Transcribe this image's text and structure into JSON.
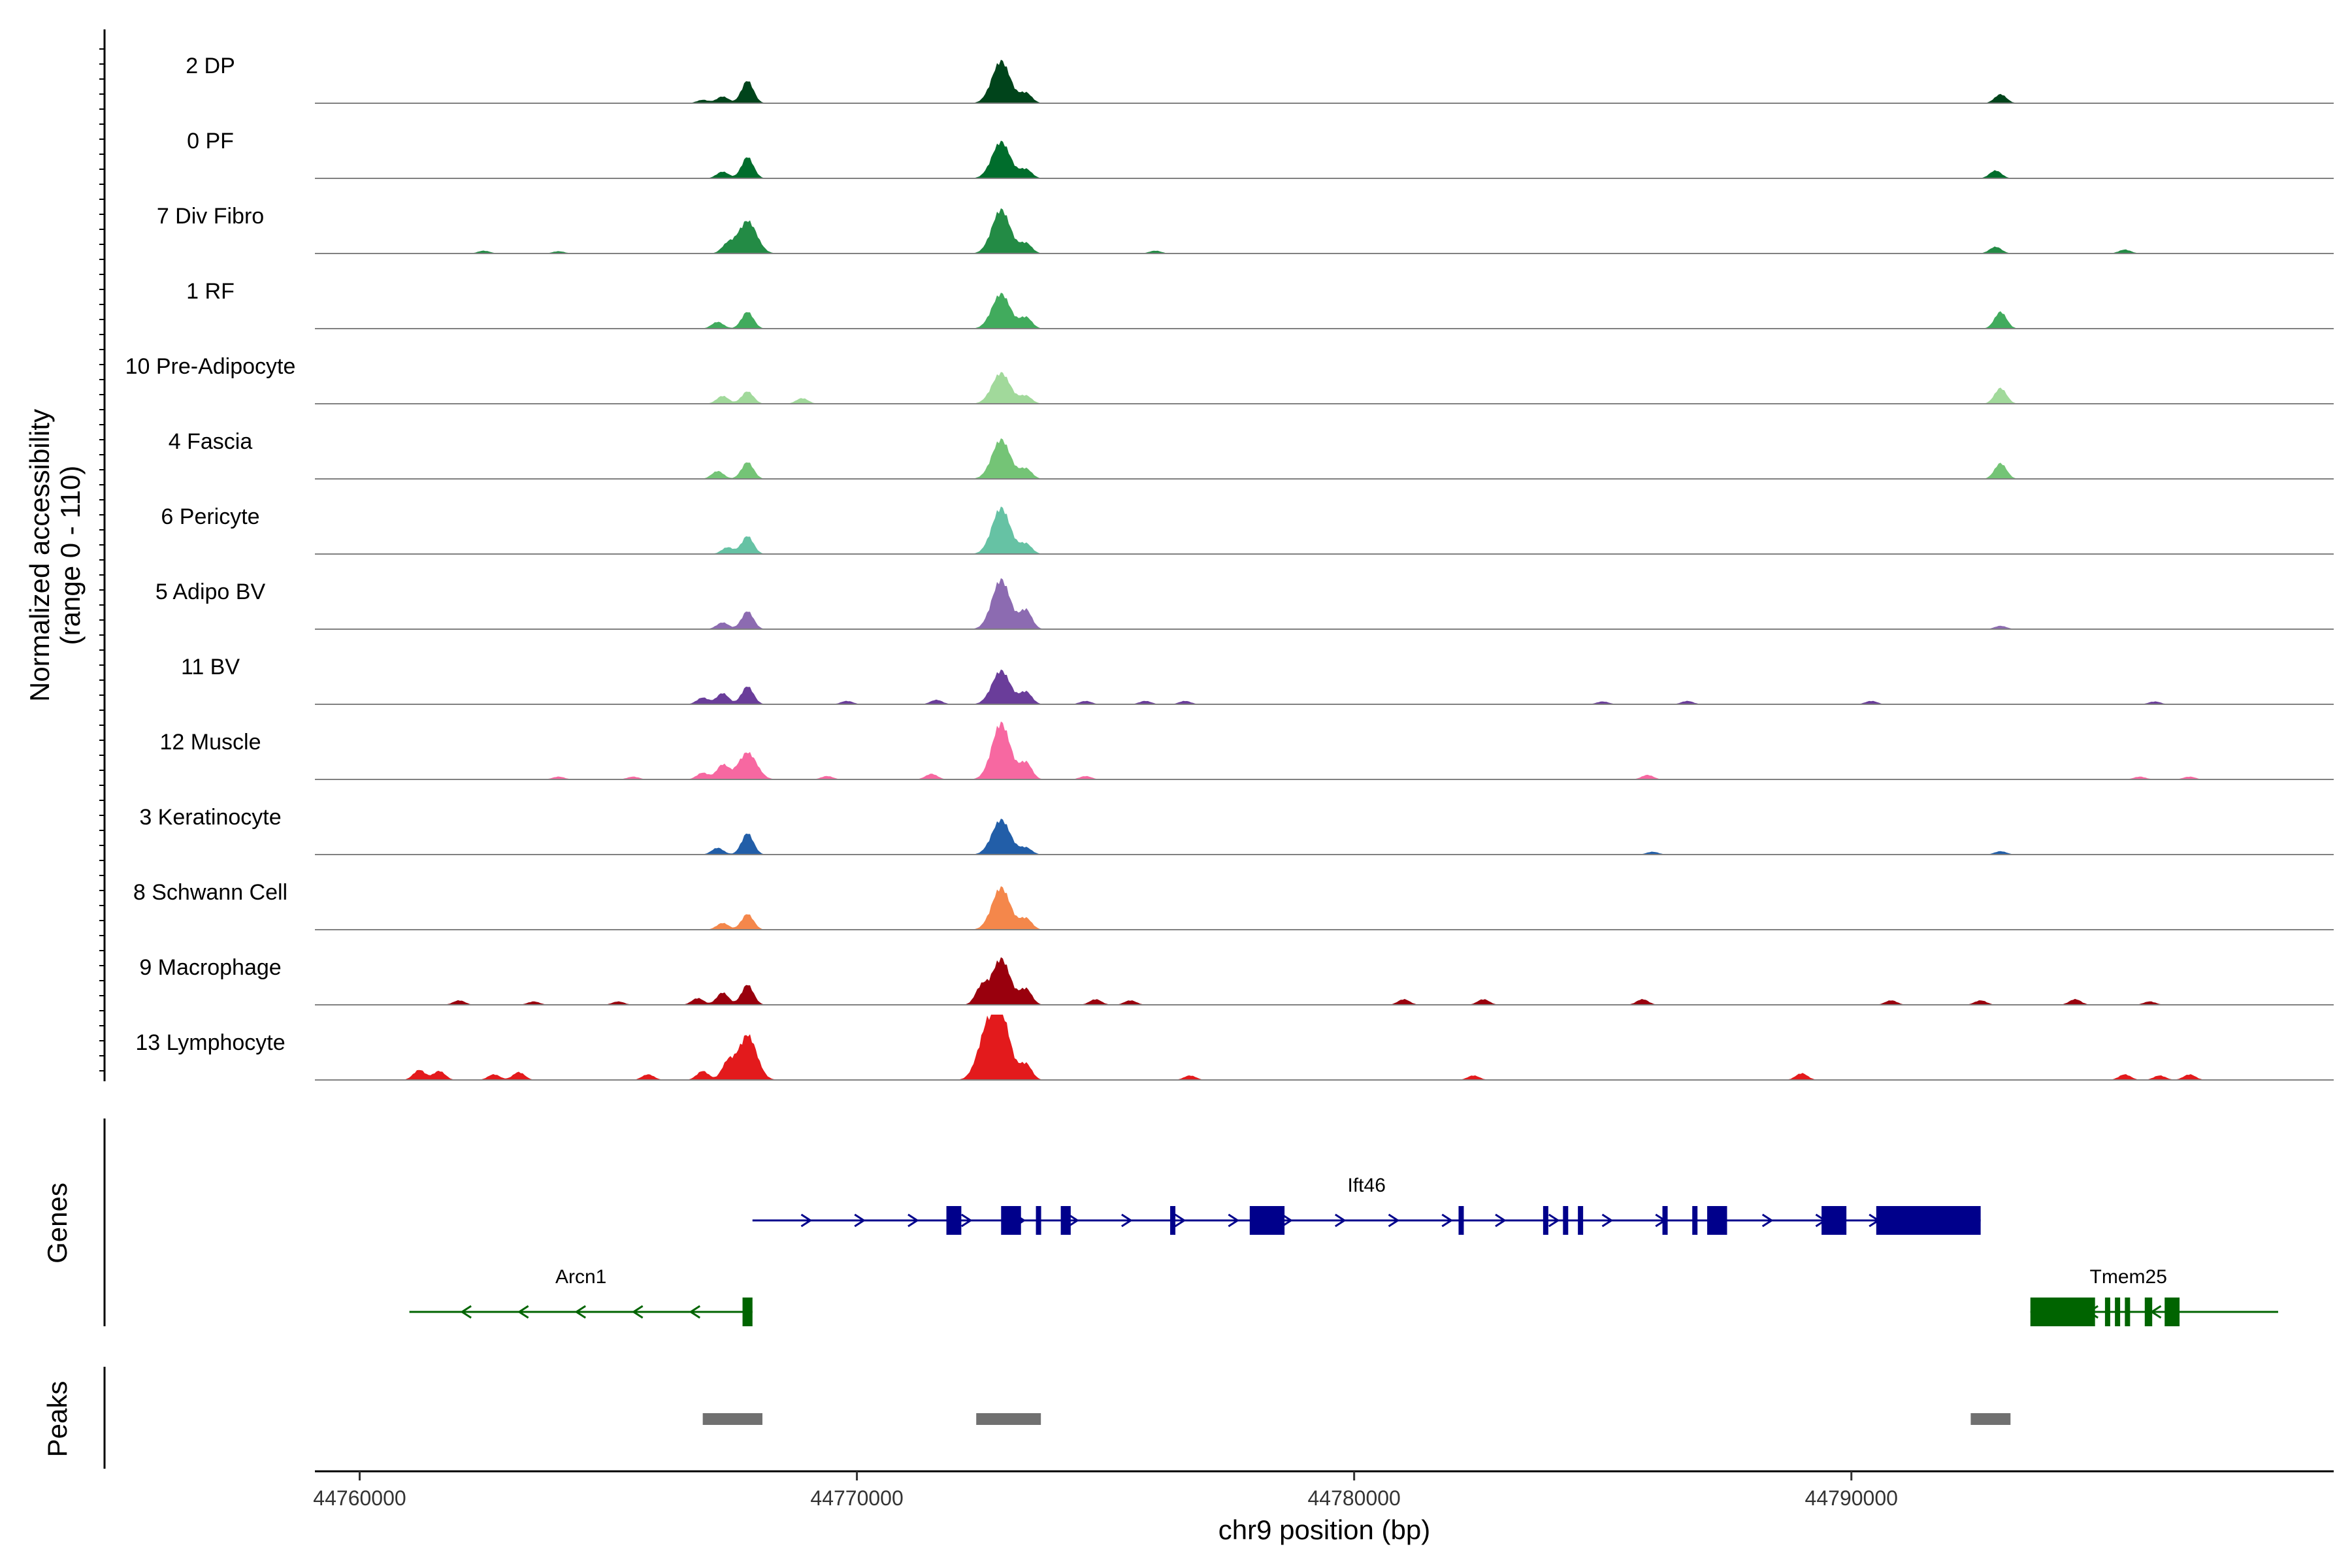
{
  "chart_data": {
    "type": "area",
    "y_axis": {
      "title_line1": "Normalized accessibility",
      "title_line2": "(range 0 - 110)",
      "range": [
        0,
        110
      ]
    },
    "x_axis": {
      "title": "chr9 position (bp)",
      "range": [
        44759100,
        44799700
      ],
      "ticks": [
        44760000,
        44770000,
        44780000,
        44790000
      ],
      "tick_labels": [
        "44760000",
        "44770000",
        "44780000",
        "44790000"
      ]
    },
    "tracks": [
      {
        "name": "2 DP",
        "color": "#00441b",
        "peaks": [
          [
            44767800,
            40
          ],
          [
            44767300,
            12
          ],
          [
            44766900,
            6
          ],
          [
            44772900,
            75
          ],
          [
            44773400,
            18
          ],
          [
            44793000,
            16
          ]
        ]
      },
      {
        "name": "0 PF",
        "color": "#006d2c",
        "peaks": [
          [
            44767800,
            38
          ],
          [
            44767300,
            12
          ],
          [
            44772900,
            65
          ],
          [
            44773400,
            16
          ],
          [
            44792900,
            14
          ]
        ]
      },
      {
        "name": "7 Div Fibro",
        "color": "#238b45",
        "peaks": [
          [
            44767800,
            58
          ],
          [
            44767400,
            16
          ],
          [
            44772900,
            78
          ],
          [
            44773400,
            18
          ],
          [
            44792900,
            12
          ],
          [
            44795500,
            7
          ],
          [
            44776000,
            5
          ],
          [
            44762500,
            5
          ],
          [
            44764000,
            4
          ]
        ]
      },
      {
        "name": "1 RF",
        "color": "#41ab5d",
        "peaks": [
          [
            44767800,
            30
          ],
          [
            44767200,
            12
          ],
          [
            44772900,
            62
          ],
          [
            44773400,
            20
          ],
          [
            44793000,
            30
          ]
        ]
      },
      {
        "name": "10 Pre-Adipocyte",
        "color": "#a1d99b",
        "peaks": [
          [
            44767800,
            22
          ],
          [
            44767300,
            14
          ],
          [
            44768900,
            10
          ],
          [
            44772900,
            55
          ],
          [
            44773400,
            14
          ],
          [
            44793000,
            28
          ]
        ]
      },
      {
        "name": "4 Fascia",
        "color": "#74c476",
        "peaks": [
          [
            44767800,
            30
          ],
          [
            44767200,
            14
          ],
          [
            44772900,
            70
          ],
          [
            44773400,
            18
          ],
          [
            44793000,
            28
          ]
        ]
      },
      {
        "name": "6 Pericyte",
        "color": "#66c2a4",
        "peaks": [
          [
            44767800,
            32
          ],
          [
            44767400,
            12
          ],
          [
            44772900,
            82
          ],
          [
            44773400,
            18
          ]
        ]
      },
      {
        "name": "5 Adipo BV",
        "color": "#8c6bb1",
        "peaks": [
          [
            44767800,
            32
          ],
          [
            44767300,
            12
          ],
          [
            44772900,
            88
          ],
          [
            44773400,
            34
          ],
          [
            44793000,
            6
          ]
        ]
      },
      {
        "name": "11 BV",
        "color": "#6a3d9a",
        "peaks": [
          [
            44767800,
            32
          ],
          [
            44767300,
            20
          ],
          [
            44766900,
            12
          ],
          [
            44772900,
            60
          ],
          [
            44773400,
            22
          ],
          [
            44771600,
            8
          ],
          [
            44769800,
            6
          ],
          [
            44774600,
            6
          ],
          [
            44775800,
            6
          ],
          [
            44776600,
            6
          ],
          [
            44785000,
            5
          ],
          [
            44786700,
            6
          ],
          [
            44790400,
            6
          ],
          [
            44796100,
            5
          ]
        ]
      },
      {
        "name": "12 Muscle",
        "color": "#f768a1",
        "peaks": [
          [
            44767800,
            48
          ],
          [
            44767300,
            26
          ],
          [
            44766900,
            12
          ],
          [
            44772900,
            100
          ],
          [
            44773400,
            30
          ],
          [
            44771500,
            10
          ],
          [
            44769400,
            6
          ],
          [
            44774600,
            6
          ],
          [
            44765500,
            5
          ],
          [
            44764000,
            5
          ],
          [
            44785900,
            8
          ],
          [
            44795800,
            5
          ],
          [
            44796800,
            5
          ]
        ]
      },
      {
        "name": "3 Keratinocyte",
        "color": "#225ea8",
        "peaks": [
          [
            44767800,
            38
          ],
          [
            44767200,
            12
          ],
          [
            44772900,
            62
          ],
          [
            44773400,
            12
          ],
          [
            44786000,
            5
          ],
          [
            44793000,
            6
          ]
        ]
      },
      {
        "name": "8 Schwann Cell",
        "color": "#f4874b",
        "peaks": [
          [
            44767800,
            28
          ],
          [
            44767300,
            12
          ],
          [
            44772900,
            75
          ],
          [
            44773400,
            20
          ]
        ]
      },
      {
        "name": "9 Macrophage",
        "color": "#99000d",
        "peaks": [
          [
            44767800,
            36
          ],
          [
            44767300,
            22
          ],
          [
            44766800,
            12
          ],
          [
            44772900,
            82
          ],
          [
            44772500,
            30
          ],
          [
            44773400,
            28
          ],
          [
            44774800,
            10
          ],
          [
            44775500,
            8
          ],
          [
            44781000,
            10
          ],
          [
            44782600,
            10
          ],
          [
            44785800,
            10
          ],
          [
            44790800,
            8
          ],
          [
            44792600,
            8
          ],
          [
            44794500,
            10
          ],
          [
            44796000,
            6
          ],
          [
            44762000,
            8
          ],
          [
            44763500,
            6
          ],
          [
            44765200,
            6
          ]
        ]
      },
      {
        "name": "13 Lymphocyte",
        "color": "#e31a1c",
        "peaks": [
          [
            44767800,
            80
          ],
          [
            44767400,
            30
          ],
          [
            44766900,
            16
          ],
          [
            44772900,
            110
          ],
          [
            44772600,
            75
          ],
          [
            44773400,
            28
          ],
          [
            44761200,
            18
          ],
          [
            44761600,
            16
          ],
          [
            44762700,
            10
          ],
          [
            44763200,
            14
          ],
          [
            44765800,
            10
          ],
          [
            44776700,
            8
          ],
          [
            44782400,
            8
          ],
          [
            44789000,
            12
          ],
          [
            44795500,
            10
          ],
          [
            44796200,
            8
          ],
          [
            44796800,
            10
          ]
        ]
      }
    ],
    "genes": {
      "title": "Genes",
      "items": [
        {
          "name": "Ift46",
          "strand": "+",
          "color": "#00008b",
          "start": 44767900,
          "end": 44792600,
          "exons": [
            [
              44771800,
              44772100
            ],
            [
              44772900,
              44773300
            ],
            [
              44773600,
              44773700
            ],
            [
              44774100,
              44774300
            ],
            [
              44776300,
              44776400
            ],
            [
              44777900,
              44778600
            ],
            [
              44782100,
              44782200
            ],
            [
              44783800,
              44783900
            ],
            [
              44784200,
              44784300
            ],
            [
              44784500,
              44784600
            ],
            [
              44786200,
              44786300
            ],
            [
              44786800,
              44786850
            ],
            [
              44787100,
              44787500
            ],
            [
              44789400,
              44789900
            ],
            [
              44790500,
              44792600
            ]
          ]
        },
        {
          "name": "Arcn1",
          "strand": "-",
          "color": "#006400",
          "start": 44761000,
          "end": 44767900,
          "exons": [
            [
              44767700,
              44767900
            ]
          ]
        },
        {
          "name": "Tmem25",
          "strand": "-",
          "color": "#006400",
          "start": 44793600,
          "end": 44797400,
          "exons": [
            [
              44793600,
              44794900
            ],
            [
              44795100,
              44795200
            ],
            [
              44795300,
              44795400
            ],
            [
              44795500,
              44795550
            ],
            [
              44795900,
              44796050
            ],
            [
              44796300,
              44796600
            ]
          ]
        }
      ]
    },
    "peaks_track": {
      "title": "Peaks",
      "color": "#707070",
      "regions": [
        [
          44766900,
          44768100
        ],
        [
          44772400,
          44773700
        ],
        [
          44792400,
          44793200
        ]
      ]
    }
  }
}
